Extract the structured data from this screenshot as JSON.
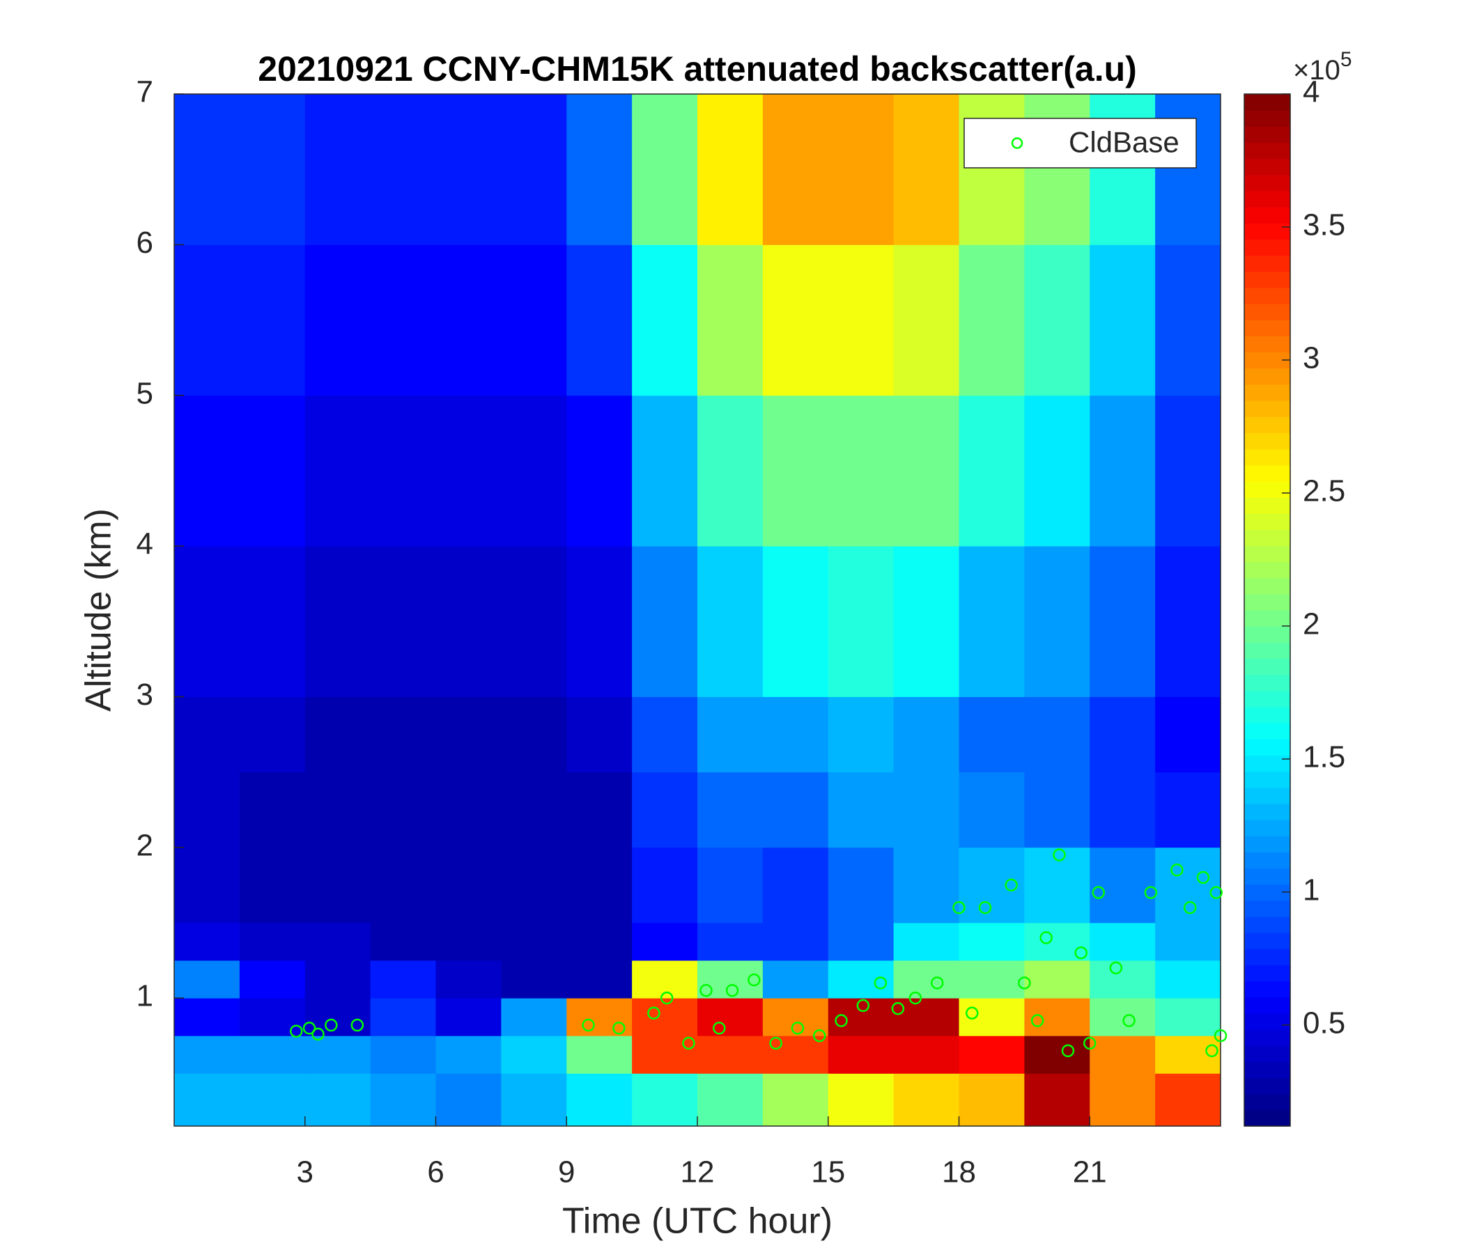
{
  "chart_data": {
    "type": "heatmap",
    "title": "20210921 CCNY-CHM15K attenuated backscatter(a.u)",
    "x_label": "Time (UTC hour)",
    "y_label": "Altitude (km)",
    "xlim": [
      0,
      24
    ],
    "xticks": [
      3,
      6,
      9,
      12,
      15,
      18,
      21
    ],
    "ylim": [
      0.15,
      7
    ],
    "yticks": [
      1,
      2,
      3,
      4,
      5,
      6,
      7
    ],
    "colormap": "jet",
    "clim": [
      12000,
      400000
    ],
    "colorbar_ticks": [
      {
        "value": 50000,
        "label": "0.5"
      },
      {
        "value": 100000,
        "label": "1"
      },
      {
        "value": 150000,
        "label": "1.5"
      },
      {
        "value": 200000,
        "label": "2"
      },
      {
        "value": 250000,
        "label": "2.5"
      },
      {
        "value": 300000,
        "label": "3"
      },
      {
        "value": 350000,
        "label": "3.5"
      },
      {
        "value": 400000,
        "label": "4"
      }
    ],
    "colorbar_scale": {
      "base": "×10",
      "exponent": "5"
    },
    "x_edges": [
      0,
      1.5,
      3,
      4.5,
      6,
      7.5,
      9,
      10.5,
      12,
      13.5,
      15,
      16.5,
      18,
      19.5,
      21,
      22.5,
      24
    ],
    "y_edges": [
      0.15,
      0.5,
      0.75,
      1,
      1.25,
      1.5,
      2,
      2.5,
      3,
      4,
      5,
      6,
      7
    ],
    "z": [
      [
        130000,
        130000,
        130000,
        120000,
        110000,
        130000,
        150000,
        170000,
        190000,
        220000,
        250000,
        270000,
        280000,
        380000,
        300000,
        330000
      ],
      [
        120000,
        120000,
        120000,
        110000,
        120000,
        140000,
        200000,
        330000,
        330000,
        330000,
        360000,
        360000,
        350000,
        400000,
        300000,
        270000
      ],
      [
        60000,
        50000,
        40000,
        80000,
        50000,
        120000,
        300000,
        330000,
        360000,
        300000,
        380000,
        380000,
        250000,
        300000,
        200000,
        180000
      ],
      [
        110000,
        60000,
        40000,
        70000,
        40000,
        30000,
        30000,
        250000,
        200000,
        120000,
        150000,
        200000,
        200000,
        220000,
        180000,
        150000
      ],
      [
        50000,
        40000,
        40000,
        30000,
        30000,
        30000,
        30000,
        60000,
        80000,
        80000,
        100000,
        150000,
        160000,
        170000,
        150000,
        130000
      ],
      [
        40000,
        30000,
        30000,
        30000,
        30000,
        30000,
        30000,
        70000,
        90000,
        80000,
        100000,
        120000,
        130000,
        140000,
        110000,
        130000
      ],
      [
        40000,
        30000,
        30000,
        30000,
        30000,
        30000,
        30000,
        80000,
        100000,
        100000,
        120000,
        120000,
        110000,
        100000,
        80000,
        70000
      ],
      [
        40000,
        40000,
        30000,
        30000,
        30000,
        30000,
        40000,
        90000,
        120000,
        120000,
        130000,
        120000,
        100000,
        100000,
        80000,
        60000
      ],
      [
        50000,
        50000,
        40000,
        40000,
        40000,
        40000,
        50000,
        110000,
        140000,
        160000,
        170000,
        160000,
        130000,
        120000,
        100000,
        70000
      ],
      [
        60000,
        60000,
        50000,
        50000,
        50000,
        50000,
        60000,
        130000,
        180000,
        200000,
        200000,
        200000,
        170000,
        150000,
        120000,
        80000
      ],
      [
        70000,
        70000,
        60000,
        60000,
        60000,
        60000,
        80000,
        160000,
        220000,
        250000,
        250000,
        240000,
        200000,
        180000,
        140000,
        90000
      ],
      [
        80000,
        80000,
        70000,
        70000,
        70000,
        70000,
        100000,
        200000,
        260000,
        290000,
        290000,
        280000,
        230000,
        210000,
        170000,
        100000
      ]
    ],
    "series": [
      {
        "name": "CldBase",
        "type": "scatter",
        "color": "#00ff00",
        "x": [
          2.8,
          3.1,
          3.3,
          3.6,
          4.2,
          9.5,
          10.2,
          11,
          11.3,
          11.8,
          12.2,
          12.5,
          12.8,
          13.3,
          13.8,
          14.3,
          14.8,
          15.3,
          15.8,
          16.2,
          16.6,
          17,
          17.5,
          18,
          18.3,
          18.6,
          19.2,
          19.5,
          19.8,
          20,
          20.3,
          20.5,
          20.8,
          21,
          21.2,
          21.6,
          21.9,
          22.4,
          23,
          23.3,
          23.6,
          23.8,
          23.9,
          24
        ],
        "values": [
          0.78,
          0.8,
          0.76,
          0.82,
          0.82,
          0.82,
          0.8,
          0.9,
          1.0,
          0.7,
          1.05,
          0.8,
          1.05,
          1.12,
          0.7,
          0.8,
          0.75,
          0.85,
          0.95,
          1.1,
          0.93,
          1.0,
          1.1,
          1.6,
          0.9,
          1.6,
          1.75,
          1.1,
          0.85,
          1.4,
          1.95,
          0.65,
          1.3,
          0.7,
          1.7,
          1.2,
          0.85,
          1.7,
          1.85,
          1.6,
          1.8,
          0.65,
          1.7,
          0.75
        ]
      }
    ],
    "legend_position": "northeast"
  }
}
